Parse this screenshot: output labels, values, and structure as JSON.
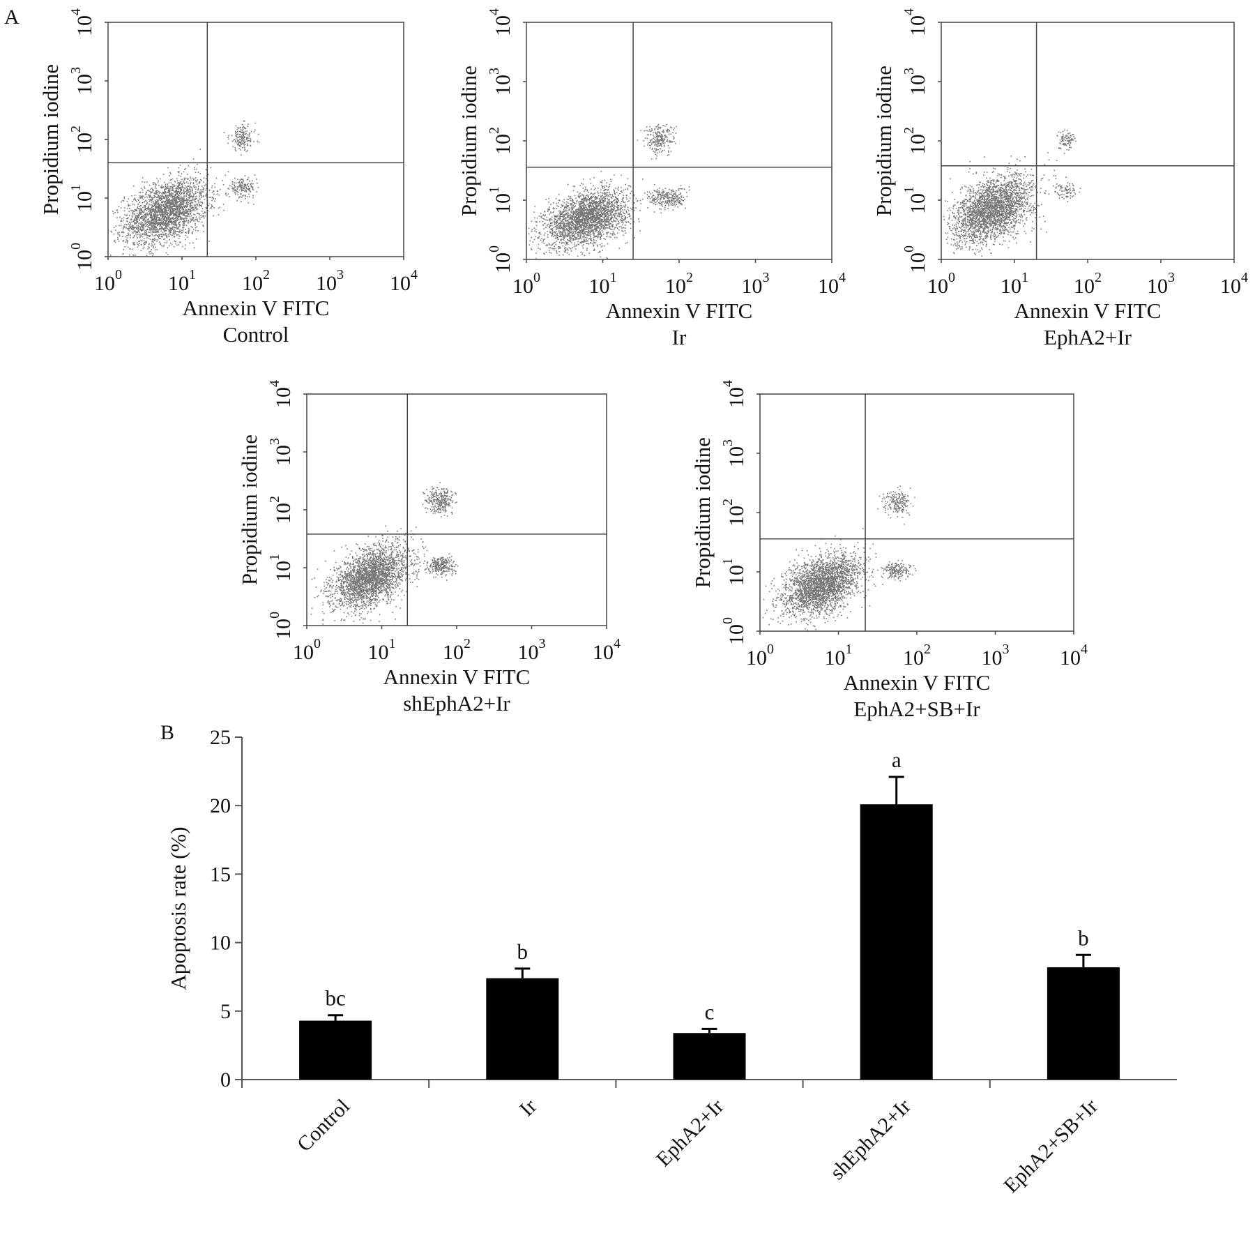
{
  "panel_labels": {
    "a": "A",
    "b": "B"
  },
  "chart_data": [
    {
      "type": "scatter",
      "caption": "Control",
      "xlabel": "Annexin V FITC",
      "ylabel": "Propidium iodine",
      "xscale": "log",
      "yscale": "log",
      "xlim": [
        1,
        10000
      ],
      "ylim": [
        1,
        10000
      ],
      "tick_labels": [
        [
          "10",
          "0"
        ],
        [
          "10",
          "1"
        ],
        [
          "10",
          "2"
        ],
        [
          "10",
          "3"
        ],
        [
          "10",
          "4"
        ]
      ],
      "gate": {
        "x": 22,
        "y": 40
      },
      "clusters": [
        {
          "x": 6,
          "y": 6,
          "sx": 0.28,
          "sy": 0.28,
          "rho": 0.4,
          "n": 2600
        },
        {
          "x": 65,
          "y": 110,
          "sx": 0.09,
          "sy": 0.11,
          "rho": 0,
          "n": 170
        },
        {
          "x": 65,
          "y": 15,
          "sx": 0.09,
          "sy": 0.08,
          "rho": 0,
          "n": 160
        }
      ]
    },
    {
      "type": "scatter",
      "caption": "Ir",
      "xlabel": "Annexin V FITC",
      "ylabel": "Propidium iodine",
      "xscale": "log",
      "yscale": "log",
      "xlim": [
        1,
        10000
      ],
      "ylim": [
        1,
        10000
      ],
      "tick_labels": [
        [
          "10",
          "0"
        ],
        [
          "10",
          "1"
        ],
        [
          "10",
          "2"
        ],
        [
          "10",
          "3"
        ],
        [
          "10",
          "4"
        ]
      ],
      "gate": {
        "x": 25,
        "y": 36
      },
      "clusters": [
        {
          "x": 6,
          "y": 5,
          "sx": 0.27,
          "sy": 0.24,
          "rho": 0.4,
          "n": 2600
        },
        {
          "x": 55,
          "y": 110,
          "sx": 0.1,
          "sy": 0.12,
          "rho": 0,
          "n": 230
        },
        {
          "x": 70,
          "y": 11,
          "sx": 0.12,
          "sy": 0.09,
          "rho": 0,
          "n": 260
        }
      ]
    },
    {
      "type": "scatter",
      "caption": "EphA2+Ir",
      "xlabel": "Annexin V FITC",
      "ylabel": "Propidium iodine",
      "xscale": "log",
      "yscale": "log",
      "xlim": [
        1,
        10000
      ],
      "ylim": [
        1,
        10000
      ],
      "tick_labels": [
        [
          "10",
          "0"
        ],
        [
          "10",
          "1"
        ],
        [
          "10",
          "2"
        ],
        [
          "10",
          "3"
        ],
        [
          "10",
          "4"
        ]
      ],
      "gate": {
        "x": 20,
        "y": 38
      },
      "clusters": [
        {
          "x": 5,
          "y": 7,
          "sx": 0.27,
          "sy": 0.28,
          "rho": 0.45,
          "n": 2600
        },
        {
          "x": 50,
          "y": 110,
          "sx": 0.07,
          "sy": 0.08,
          "rho": 0,
          "n": 90
        },
        {
          "x": 50,
          "y": 15,
          "sx": 0.07,
          "sy": 0.07,
          "rho": 0,
          "n": 80
        }
      ]
    },
    {
      "type": "scatter",
      "caption": "shEphA2+Ir",
      "xlabel": "Annexin V FITC",
      "ylabel": "Propidium iodine",
      "xscale": "log",
      "yscale": "log",
      "xlim": [
        1,
        10000
      ],
      "ylim": [
        1,
        10000
      ],
      "tick_labels": [
        [
          "10",
          "0"
        ],
        [
          "10",
          "1"
        ],
        [
          "10",
          "2"
        ],
        [
          "10",
          "3"
        ],
        [
          "10",
          "4"
        ]
      ],
      "gate": {
        "x": 22,
        "y": 38
      },
      "clusters": [
        {
          "x": 7,
          "y": 7,
          "sx": 0.25,
          "sy": 0.27,
          "rho": 0.45,
          "n": 2600
        },
        {
          "x": 60,
          "y": 150,
          "sx": 0.09,
          "sy": 0.11,
          "rho": 0,
          "n": 280
        },
        {
          "x": 62,
          "y": 11,
          "sx": 0.09,
          "sy": 0.08,
          "rho": 0,
          "n": 260
        }
      ]
    },
    {
      "type": "scatter",
      "caption": "EphA2+SB+Ir",
      "xlabel": "Annexin V FITC",
      "ylabel": "Propidium iodine",
      "xscale": "log",
      "yscale": "log",
      "xlim": [
        1,
        10000
      ],
      "ylim": [
        1,
        10000
      ],
      "tick_labels": [
        [
          "10",
          "0"
        ],
        [
          "10",
          "1"
        ],
        [
          "10",
          "2"
        ],
        [
          "10",
          "3"
        ],
        [
          "10",
          "4"
        ]
      ],
      "gate": {
        "x": 22,
        "y": 36
      },
      "clusters": [
        {
          "x": 6,
          "y": 6,
          "sx": 0.25,
          "sy": 0.26,
          "rho": 0.45,
          "n": 2600
        },
        {
          "x": 55,
          "y": 150,
          "sx": 0.09,
          "sy": 0.1,
          "rho": 0,
          "n": 190
        },
        {
          "x": 55,
          "y": 11,
          "sx": 0.09,
          "sy": 0.07,
          "rho": 0,
          "n": 180
        }
      ]
    },
    {
      "type": "bar",
      "categories": [
        "Control",
        "Ir",
        "EphA2+Ir",
        "shEphA2+Ir",
        "EphA2+SB+Ir"
      ],
      "values": [
        4.3,
        7.4,
        3.4,
        20.1,
        8.2
      ],
      "errors": [
        0.4,
        0.7,
        0.3,
        2.0,
        0.9
      ],
      "annotations": [
        "bc",
        "b",
        "c",
        "a",
        "b"
      ],
      "ylabel": "Apoptosis rate (%)",
      "xlabel": "",
      "ylim": [
        0,
        25
      ],
      "yticks": [
        0,
        5,
        10,
        15,
        20,
        25
      ],
      "bar_color": "#000000"
    }
  ]
}
